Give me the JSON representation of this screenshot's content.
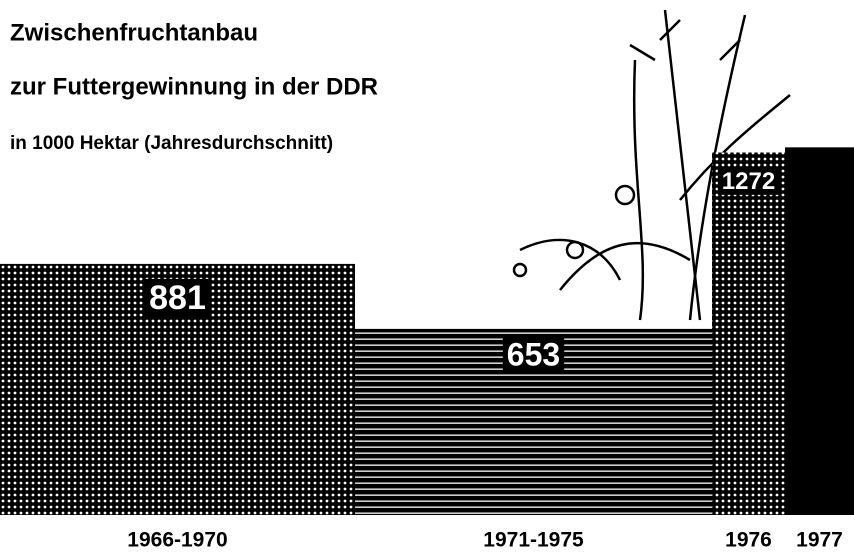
{
  "chart_data": {
    "type": "bar",
    "title": "Zwischenfruchtanbau",
    "subtitle": "zur Futtergewinnung in der DDR",
    "y_label": "in 1000 Hektar (Jahresdurchschnitt)",
    "categories": [
      "1966-1970",
      "1971-1975",
      "1976",
      "1977"
    ],
    "values": [
      881,
      653,
      1272,
      1290
    ],
    "value_labels": [
      "881",
      "653",
      "1272",
      null
    ],
    "color": "#000000"
  }
}
